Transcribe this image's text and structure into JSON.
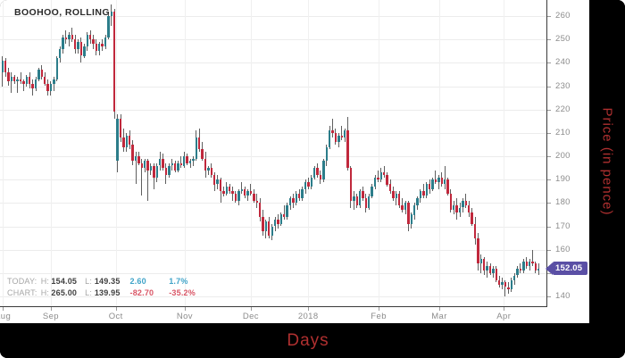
{
  "chart": {
    "title": "BOOHOO, ROLLING",
    "last_price": "152.05",
    "stats": {
      "today": {
        "label": "TODAY:",
        "h_label": "H:",
        "high": "154.05",
        "l_label": "L:",
        "low": "149.35",
        "change": "2.60",
        "change_pct": "1.7%"
      },
      "chart": {
        "label": "CHART:",
        "h_label": "H:",
        "high": "265.00",
        "l_label": "L:",
        "low": "139.95",
        "change": "-82.70",
        "change_pct": "-35.2%"
      }
    }
  },
  "chart_data": {
    "type": "candlestick",
    "title": "BOOHOO, ROLLING",
    "xlabel": "Days",
    "ylabel": "Price (in pence)",
    "ylim": [
      135.8,
      266.9
    ],
    "yticks": [
      140,
      150,
      160,
      170,
      180,
      190,
      200,
      210,
      220,
      230,
      240,
      250,
      260
    ],
    "xticks": [
      {
        "label": "Aug",
        "pos": 0.005
      },
      {
        "label": "Sep",
        "pos": 0.093
      },
      {
        "label": "Oct",
        "pos": 0.212
      },
      {
        "label": "Nov",
        "pos": 0.338
      },
      {
        "label": "Dec",
        "pos": 0.459
      },
      {
        "label": "2018",
        "pos": 0.564
      },
      {
        "label": "Feb",
        "pos": 0.693
      },
      {
        "label": "Mar",
        "pos": 0.804
      },
      {
        "label": "Apr",
        "pos": 0.922
      }
    ],
    "grid": true,
    "legend": false,
    "last_close": 152.05,
    "today": {
      "high": 154.05,
      "low": 149.35,
      "change": 2.6,
      "change_pct": 1.7
    },
    "chart_range": {
      "high": 265.0,
      "low": 139.95,
      "change": -82.7,
      "change_pct": -35.2
    },
    "colors": {
      "up": "#2c7d8a",
      "down": "#c0283c",
      "wick": "#5f5f5f",
      "badge": "#5a4fa5",
      "grid": "#ececec",
      "axis_text": "#8c8c8c",
      "axis_title_red": "#b03030",
      "pos_text": "#3fa3c8",
      "neg_text": "#d95666"
    },
    "candles": [
      [
        236,
        243,
        230,
        241
      ],
      [
        241,
        242,
        234,
        236
      ],
      [
        236,
        238,
        230,
        232
      ],
      [
        232,
        236,
        227,
        234
      ],
      [
        234,
        235,
        231,
        232
      ],
      [
        232,
        234,
        227,
        233
      ],
      [
        233,
        236,
        231,
        232
      ],
      [
        232,
        233,
        228,
        231
      ],
      [
        231,
        235,
        230,
        234
      ],
      [
        234,
        236,
        229,
        231
      ],
      [
        231,
        233,
        226,
        229
      ],
      [
        229,
        234,
        228,
        233
      ],
      [
        233,
        238,
        232,
        237
      ],
      [
        237,
        239,
        233,
        234
      ],
      [
        234,
        236,
        230,
        231
      ],
      [
        231,
        233,
        226,
        228
      ],
      [
        228,
        232,
        226,
        231
      ],
      [
        231,
        234,
        228,
        233
      ],
      [
        233,
        243,
        232,
        242
      ],
      [
        242,
        247,
        240,
        246
      ],
      [
        246,
        252,
        244,
        251
      ],
      [
        251,
        254,
        248,
        250
      ],
      [
        250,
        253,
        247,
        252
      ],
      [
        252,
        255,
        249,
        250
      ],
      [
        250,
        252,
        244,
        246
      ],
      [
        246,
        250,
        244,
        249
      ],
      [
        249,
        251,
        240,
        243
      ],
      [
        243,
        248,
        242,
        247
      ],
      [
        247,
        253,
        245,
        252
      ],
      [
        252,
        254,
        248,
        250
      ],
      [
        250,
        252,
        246,
        248
      ],
      [
        248,
        250,
        243,
        245
      ],
      [
        245,
        249,
        243,
        248
      ],
      [
        248,
        250,
        245,
        247
      ],
      [
        247,
        252,
        246,
        251
      ],
      [
        251,
        262,
        250,
        260
      ],
      [
        260,
        265,
        256,
        262
      ],
      [
        262,
        263,
        216,
        219
      ],
      [
        198,
        218,
        193,
        216
      ],
      [
        216,
        218,
        206,
        208
      ],
      [
        208,
        212,
        202,
        204
      ],
      [
        204,
        210,
        202,
        209
      ],
      [
        209,
        211,
        203,
        205
      ],
      [
        205,
        207,
        196,
        198
      ],
      [
        198,
        202,
        188,
        200
      ],
      [
        200,
        202,
        196,
        197
      ],
      [
        197,
        199,
        183,
        195
      ],
      [
        195,
        199,
        193,
        198
      ],
      [
        198,
        199,
        181,
        194
      ],
      [
        194,
        197,
        192,
        196
      ],
      [
        196,
        197,
        186,
        191
      ],
      [
        191,
        197,
        189,
        196
      ],
      [
        196,
        202,
        194,
        199
      ],
      [
        199,
        201,
        194,
        195
      ],
      [
        195,
        197,
        188,
        192
      ],
      [
        192,
        197,
        191,
        196
      ],
      [
        196,
        199,
        194,
        197
      ],
      [
        197,
        198,
        193,
        194
      ],
      [
        194,
        198,
        193,
        197
      ],
      [
        197,
        200,
        195,
        196
      ],
      [
        196,
        202,
        195,
        200
      ],
      [
        200,
        201,
        196,
        197
      ],
      [
        197,
        199,
        195,
        198
      ],
      [
        198,
        200,
        196,
        199
      ],
      [
        199,
        211,
        198,
        208
      ],
      [
        208,
        212,
        202,
        203
      ],
      [
        203,
        206,
        198,
        199
      ],
      [
        199,
        202,
        191,
        194
      ],
      [
        194,
        196,
        192,
        195
      ],
      [
        195,
        197,
        191,
        192
      ],
      [
        192,
        193,
        185,
        188
      ],
      [
        188,
        192,
        186,
        190
      ],
      [
        190,
        191,
        180,
        185
      ],
      [
        185,
        187,
        183,
        184
      ],
      [
        184,
        189,
        183,
        187
      ],
      [
        187,
        188,
        184,
        185
      ],
      [
        185,
        187,
        181,
        184
      ],
      [
        184,
        185,
        180,
        181
      ],
      [
        181,
        186,
        179,
        185
      ],
      [
        185,
        189,
        184,
        186
      ],
      [
        186,
        187,
        182,
        183
      ],
      [
        183,
        186,
        181,
        185
      ],
      [
        185,
        188,
        183,
        184
      ],
      [
        184,
        186,
        180,
        181
      ],
      [
        181,
        184,
        178,
        180
      ],
      [
        180,
        182,
        172,
        174
      ],
      [
        174,
        177,
        166,
        168
      ],
      [
        168,
        173,
        165,
        172
      ],
      [
        172,
        174,
        165,
        166
      ],
      [
        166,
        171,
        164,
        170
      ],
      [
        170,
        174,
        168,
        173
      ],
      [
        173,
        175,
        169,
        171
      ],
      [
        171,
        176,
        170,
        175
      ],
      [
        175,
        179,
        173,
        174
      ],
      [
        174,
        180,
        173,
        179
      ],
      [
        179,
        183,
        177,
        182
      ],
      [
        182,
        184,
        178,
        180
      ],
      [
        180,
        185,
        179,
        184
      ],
      [
        184,
        186,
        181,
        182
      ],
      [
        182,
        187,
        181,
        186
      ],
      [
        186,
        190,
        184,
        189
      ],
      [
        189,
        191,
        186,
        187
      ],
      [
        187,
        192,
        186,
        191
      ],
      [
        191,
        196,
        190,
        195
      ],
      [
        195,
        197,
        191,
        192
      ],
      [
        192,
        194,
        188,
        190
      ],
      [
        190,
        199,
        189,
        198
      ],
      [
        198,
        205,
        196,
        204
      ],
      [
        204,
        213,
        203,
        211
      ],
      [
        211,
        216,
        208,
        210
      ],
      [
        210,
        212,
        205,
        206
      ],
      [
        206,
        210,
        204,
        209
      ],
      [
        209,
        213,
        207,
        208
      ],
      [
        208,
        212,
        206,
        211
      ],
      [
        211,
        217,
        194,
        195
      ],
      [
        195,
        196,
        178,
        181
      ],
      [
        181,
        185,
        177,
        183
      ],
      [
        183,
        184,
        178,
        179
      ],
      [
        179,
        186,
        178,
        185
      ],
      [
        185,
        187,
        181,
        182
      ],
      [
        182,
        184,
        176,
        178
      ],
      [
        178,
        184,
        177,
        183
      ],
      [
        183,
        188,
        182,
        187
      ],
      [
        187,
        192,
        186,
        191
      ],
      [
        191,
        194,
        189,
        190
      ],
      [
        190,
        195,
        189,
        193
      ],
      [
        193,
        196,
        191,
        192
      ],
      [
        192,
        193,
        187,
        188
      ],
      [
        188,
        190,
        184,
        185
      ],
      [
        185,
        187,
        181,
        182
      ],
      [
        182,
        185,
        179,
        184
      ],
      [
        184,
        185,
        178,
        179
      ],
      [
        179,
        182,
        176,
        177
      ],
      [
        177,
        181,
        175,
        180
      ],
      [
        180,
        181,
        168,
        171
      ],
      [
        171,
        176,
        169,
        175
      ],
      [
        175,
        180,
        173,
        179
      ],
      [
        179,
        183,
        177,
        182
      ],
      [
        182,
        186,
        180,
        185
      ],
      [
        185,
        188,
        182,
        183
      ],
      [
        183,
        189,
        182,
        188
      ],
      [
        188,
        190,
        184,
        186
      ],
      [
        186,
        191,
        185,
        190
      ],
      [
        190,
        194,
        188,
        189
      ],
      [
        189,
        192,
        186,
        191
      ],
      [
        191,
        193,
        187,
        188
      ],
      [
        188,
        196,
        186,
        190
      ],
      [
        190,
        191,
        183,
        184
      ],
      [
        184,
        186,
        176,
        177
      ],
      [
        177,
        181,
        175,
        179
      ],
      [
        179,
        182,
        173,
        176
      ],
      [
        176,
        180,
        174,
        178
      ],
      [
        178,
        182,
        176,
        181
      ],
      [
        181,
        184,
        178,
        179
      ],
      [
        179,
        181,
        174,
        176
      ],
      [
        176,
        178,
        170,
        171
      ],
      [
        171,
        174,
        162,
        165
      ],
      [
        165,
        167,
        151,
        154
      ],
      [
        154,
        158,
        150,
        156
      ],
      [
        156,
        157,
        149,
        151
      ],
      [
        151,
        155,
        148,
        153
      ],
      [
        153,
        154,
        149,
        150
      ],
      [
        150,
        153,
        148,
        152
      ],
      [
        152,
        153,
        146,
        147
      ],
      [
        147,
        149,
        144,
        145
      ],
      [
        145,
        148,
        143,
        146
      ],
      [
        146,
        147,
        139.95,
        144
      ],
      [
        144,
        146,
        141,
        143
      ],
      [
        143,
        148,
        142,
        147
      ],
      [
        147,
        150,
        145,
        149
      ],
      [
        149,
        153,
        148,
        152
      ],
      [
        152,
        154,
        150,
        151
      ],
      [
        151,
        156,
        150,
        155
      ],
      [
        155,
        157,
        152,
        153
      ],
      [
        153,
        156,
        151,
        155
      ],
      [
        155,
        160,
        153,
        154
      ],
      [
        154,
        155,
        150,
        151
      ],
      [
        151,
        154.05,
        149.35,
        152.05
      ]
    ]
  }
}
